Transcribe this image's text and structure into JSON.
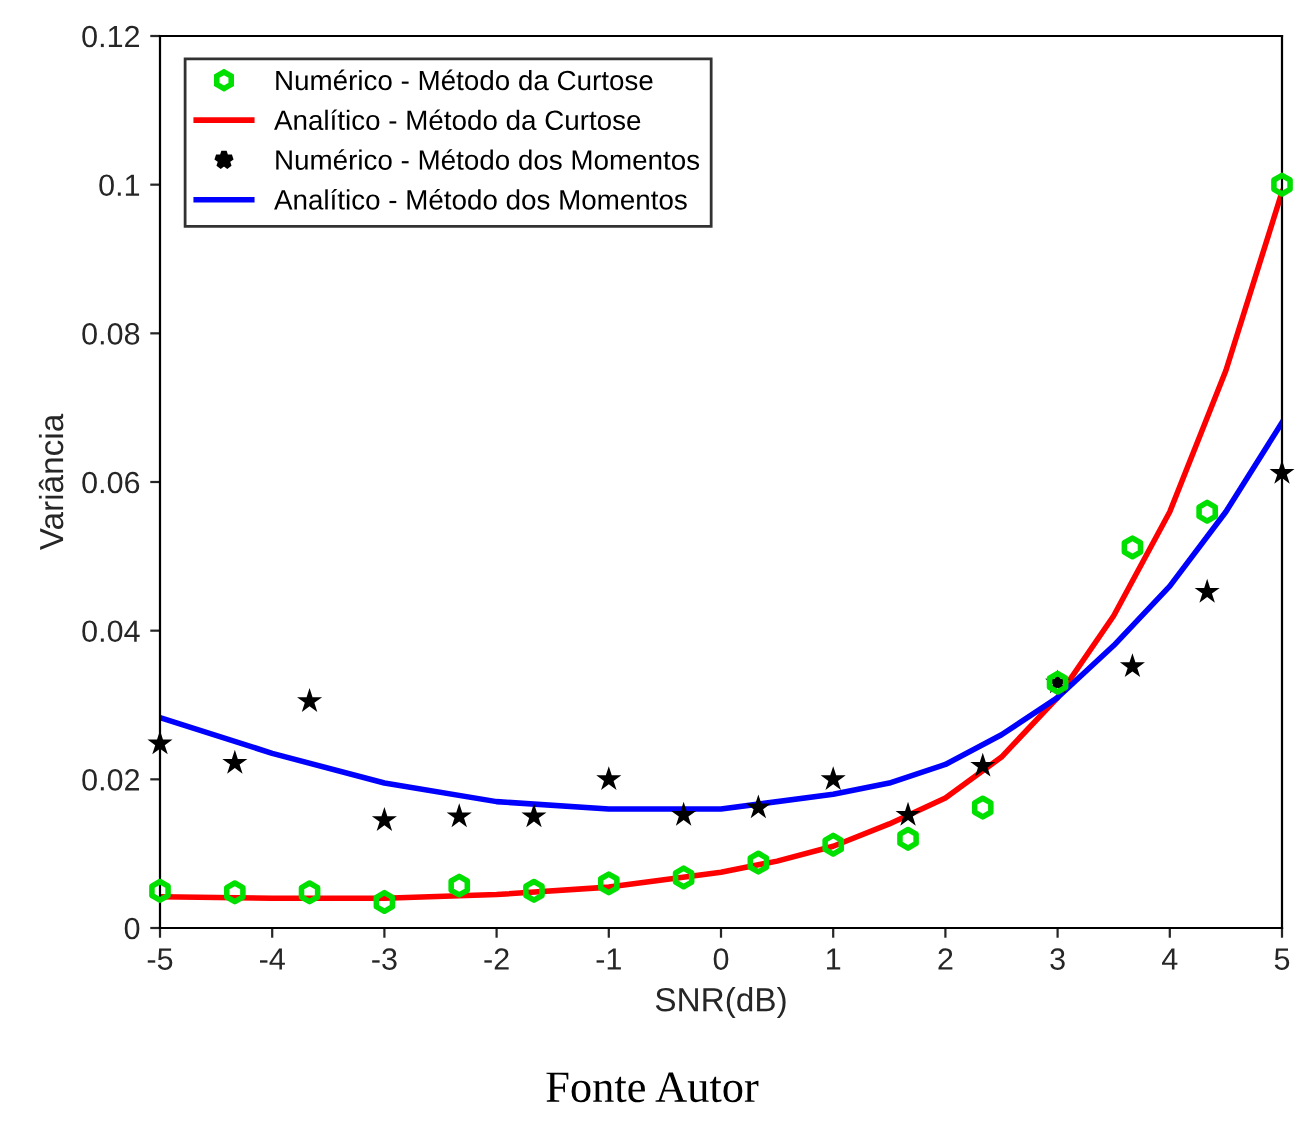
{
  "chart_data": {
    "type": "line",
    "xlabel": "SNR(dB)",
    "ylabel": "Variância",
    "xlim": [
      -5,
      5
    ],
    "ylim": [
      0,
      0.12
    ],
    "xticks": [
      -5,
      -4,
      -3,
      -2,
      -1,
      0,
      1,
      2,
      3,
      4,
      5
    ],
    "yticks": [
      0,
      0.02,
      0.04,
      0.06,
      0.08,
      0.1,
      0.12
    ],
    "grid": false,
    "legend": "top left",
    "annotations": [
      "Fonte Autor"
    ],
    "series": [
      {
        "name": "Numérico - Método da Curtose",
        "type": "scatter",
        "marker": "circle",
        "color": "#00e000",
        "x": [
          -5,
          -4.333,
          -3.667,
          -3,
          -2.333,
          -1.667,
          -1,
          -0.333,
          0.333,
          1,
          1.667,
          2.333,
          3,
          3.667,
          4.333,
          5
        ],
        "values": [
          0.005,
          0.0048,
          0.0048,
          0.0035,
          0.0057,
          0.005,
          0.006,
          0.0068,
          0.0088,
          0.0112,
          0.012,
          0.0162,
          0.033,
          0.0512,
          0.056,
          0.1
        ]
      },
      {
        "name": "Analítico - Método da Curtose",
        "marker": "none",
        "color": "#ff0000",
        "x": [
          -5,
          -4,
          -3,
          -2,
          -1,
          0,
          0.5,
          1,
          1.5,
          2,
          2.5,
          3,
          3.5,
          4,
          4.5,
          5
        ],
        "values": [
          0.0042,
          0.004,
          0.004,
          0.0045,
          0.0055,
          0.0075,
          0.009,
          0.011,
          0.014,
          0.0175,
          0.023,
          0.031,
          0.042,
          0.056,
          0.075,
          0.099
        ]
      },
      {
        "name": "Numérico - Método dos Momentos",
        "type": "scatter",
        "marker": "star",
        "color": "#000000",
        "x": [
          -5,
          -4.333,
          -3.667,
          -3,
          -2.333,
          -1.667,
          -1,
          -0.333,
          0.333,
          1,
          1.667,
          2.333,
          3,
          3.667,
          4.333,
          5
        ],
        "values": [
          0.0248,
          0.0222,
          0.0305,
          0.0145,
          0.015,
          0.015,
          0.02,
          0.0152,
          0.0162,
          0.02,
          0.0152,
          0.0218,
          0.033,
          0.0352,
          0.0452,
          0.0612
        ]
      },
      {
        "name": "Analítico - Método dos Momentos",
        "marker": "none",
        "color": "#0000ff",
        "x": [
          -5,
          -4,
          -3,
          -2,
          -1,
          0,
          1,
          1.5,
          2,
          2.5,
          3,
          3.5,
          4,
          4.5,
          5
        ],
        "values": [
          0.0283,
          0.0235,
          0.0195,
          0.017,
          0.016,
          0.016,
          0.018,
          0.0195,
          0.022,
          0.026,
          0.031,
          0.038,
          0.046,
          0.056,
          0.068
        ]
      }
    ]
  }
}
